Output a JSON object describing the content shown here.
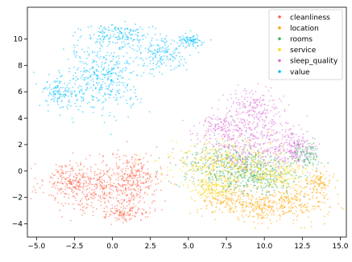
{
  "chart_data": {
    "type": "scatter",
    "title": "",
    "xlabel": "",
    "ylabel": "",
    "xlim": [
      -5.6,
      15.4
    ],
    "ylim": [
      -5.0,
      12.4
    ],
    "x_ticks": [
      -5.0,
      -2.5,
      0.0,
      2.5,
      5.0,
      7.5,
      10.0,
      12.5,
      15.0
    ],
    "x_tick_labels": [
      "−5.0",
      "−2.5",
      "0.0",
      "2.5",
      "5.0",
      "7.5",
      "10.0",
      "12.5",
      "15.0"
    ],
    "y_ticks": [
      -4,
      -2,
      0,
      2,
      4,
      6,
      8,
      10
    ],
    "y_tick_labels": [
      "−4",
      "−2",
      "0",
      "2",
      "4",
      "6",
      "8",
      "10"
    ],
    "grid": false,
    "legend_position": "top-right",
    "series": [
      {
        "name": "cleanliness",
        "color": "#ff6347",
        "clusters": [
          {
            "cx": -0.6,
            "cy": -1.3,
            "rx": 3.7,
            "ry": 1.9
          },
          {
            "cx": 1.5,
            "cy": -0.2,
            "rx": 1.6,
            "ry": 1.6
          },
          {
            "cx": -2.7,
            "cy": -0.6,
            "rx": 1.4,
            "ry": 1.2
          },
          {
            "cx": 0.8,
            "cy": -3.2,
            "rx": 1.8,
            "ry": 0.6
          }
        ]
      },
      {
        "name": "location",
        "color": "#ffa500",
        "clusters": [
          {
            "cx": 12.0,
            "cy": -2.4,
            "rx": 2.2,
            "ry": 1.4
          },
          {
            "cx": 7.6,
            "cy": -2.1,
            "rx": 2.0,
            "ry": 1.3
          },
          {
            "cx": 9.8,
            "cy": -2.8,
            "rx": 1.6,
            "ry": 1.0
          },
          {
            "cx": 13.6,
            "cy": -0.9,
            "rx": 0.8,
            "ry": 0.9
          }
        ]
      },
      {
        "name": "rooms",
        "color": "#3cb371",
        "clusters": [
          {
            "cx": 7.8,
            "cy": 0.4,
            "rx": 3.6,
            "ry": 1.8
          },
          {
            "cx": 12.6,
            "cy": 1.2,
            "rx": 1.2,
            "ry": 1.0
          },
          {
            "cx": 9.8,
            "cy": -0.6,
            "rx": 2.6,
            "ry": 1.2
          }
        ]
      },
      {
        "name": "service",
        "color": "#ffd700",
        "clusters": [
          {
            "cx": 7.2,
            "cy": 0.7,
            "rx": 3.4,
            "ry": 1.6
          },
          {
            "cx": 10.8,
            "cy": -0.2,
            "rx": 2.2,
            "ry": 1.1
          },
          {
            "cx": 6.6,
            "cy": -1.3,
            "rx": 1.4,
            "ry": 0.9
          }
        ]
      },
      {
        "name": "sleep_quality",
        "color": "#da70d6",
        "clusters": [
          {
            "cx": 9.6,
            "cy": 2.0,
            "rx": 3.2,
            "ry": 2.0
          },
          {
            "cx": 9.4,
            "cy": 4.8,
            "rx": 1.7,
            "ry": 1.4
          },
          {
            "cx": 7.2,
            "cy": 3.4,
            "rx": 1.8,
            "ry": 1.0
          },
          {
            "cx": 12.2,
            "cy": 1.6,
            "rx": 1.0,
            "ry": 1.0
          }
        ]
      },
      {
        "name": "value",
        "color": "#00bfff",
        "clusters": [
          {
            "cx": -0.6,
            "cy": 7.2,
            "rx": 2.6,
            "ry": 2.6
          },
          {
            "cx": 3.2,
            "cy": 8.9,
            "rx": 1.6,
            "ry": 1.3
          },
          {
            "cx": -3.4,
            "cy": 6.0,
            "rx": 1.2,
            "ry": 1.2
          },
          {
            "cx": 0.4,
            "cy": 10.2,
            "rx": 2.0,
            "ry": 0.9
          },
          {
            "cx": 5.2,
            "cy": 9.9,
            "rx": 0.9,
            "ry": 0.5
          }
        ]
      }
    ]
  }
}
